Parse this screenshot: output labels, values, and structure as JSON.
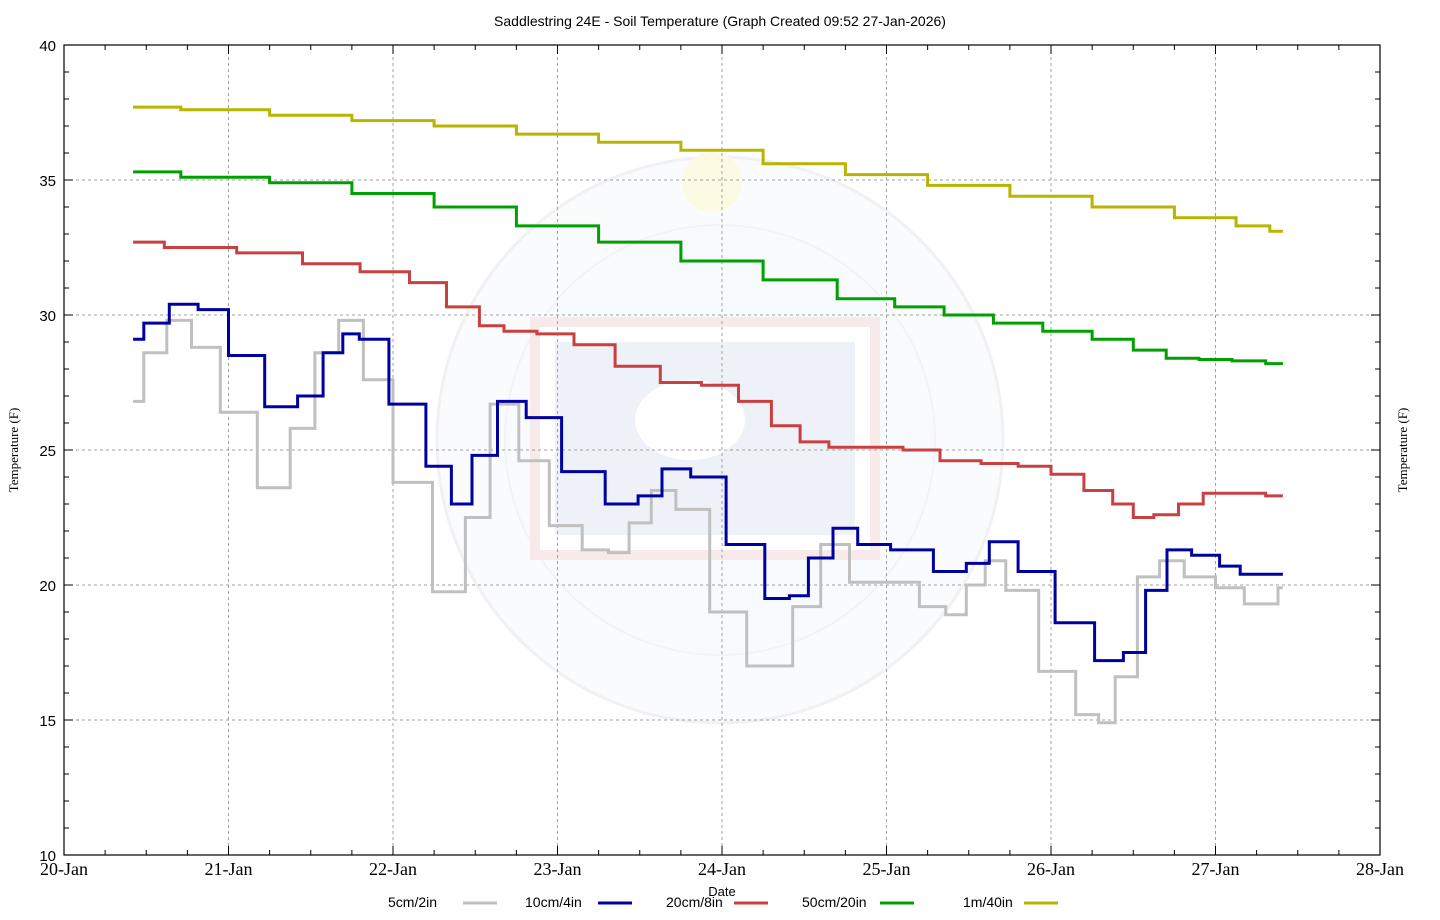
{
  "chart_data": {
    "type": "line",
    "title": "Saddlestring 24E - Soil Temperature (Graph Created 09:52 27-Jan-2026)",
    "xlabel": "Date",
    "ylabel": "Temperature (F)",
    "ylabel_right": "Temperature (F)",
    "xlim_days": [
      0,
      8
    ],
    "ylim": [
      10,
      40
    ],
    "x_tick_labels": [
      "20-Jan",
      "21-Jan",
      "22-Jan",
      "23-Jan",
      "24-Jan",
      "25-Jan",
      "26-Jan",
      "27-Jan",
      "28-Jan"
    ],
    "y_tick_labels": [
      "10",
      "15",
      "20",
      "25",
      "30",
      "35",
      "40"
    ],
    "y_ticks": [
      10,
      15,
      20,
      25,
      30,
      35,
      40
    ],
    "y_minor_step": 1,
    "x_minor_step_days": 0.25,
    "grid": true,
    "legend_position": "bottom",
    "x_unit_note": "x values are days after 20-Jan 00:00",
    "series": [
      {
        "name": "5cm/2in",
        "color": "#c0c0c0",
        "x": [
          0.42,
          0.55,
          0.7,
          0.85,
          1.05,
          1.3,
          1.45,
          1.6,
          1.74,
          1.9,
          2.1,
          2.38,
          2.5,
          2.68,
          2.85,
          3.05,
          3.25,
          3.37,
          3.5,
          3.64,
          3.8,
          4.05,
          4.25,
          4.36,
          4.5,
          4.7,
          4.85,
          5.1,
          5.3,
          5.42,
          5.55,
          5.65,
          5.8,
          6.05,
          6.25,
          6.33,
          6.45,
          6.6,
          6.72,
          6.9,
          7.1,
          7.25,
          7.35,
          7.41
        ],
        "y": [
          26.8,
          28.6,
          29.8,
          28.8,
          26.4,
          23.6,
          25.8,
          28.6,
          29.8,
          27.6,
          23.8,
          19.75,
          22.5,
          26.7,
          24.6,
          22.2,
          21.3,
          21.2,
          22.3,
          23.5,
          22.8,
          19.0,
          17.0,
          17.0,
          19.2,
          21.5,
          20.1,
          20.1,
          19.2,
          18.9,
          20.0,
          20.9,
          19.8,
          16.8,
          15.2,
          14.9,
          16.6,
          20.3,
          20.9,
          20.3,
          19.9,
          19.3,
          19.3,
          19.9
        ]
      },
      {
        "name": "10cm/4in",
        "color": "#0000a0",
        "x": [
          0.42,
          0.55,
          0.73,
          0.9,
          1.1,
          1.34,
          1.5,
          1.65,
          1.74,
          1.85,
          2.1,
          2.3,
          2.41,
          2.55,
          2.72,
          2.9,
          3.15,
          3.43,
          3.55,
          3.72,
          3.9,
          4.15,
          4.37,
          4.45,
          4.6,
          4.75,
          4.9,
          5.15,
          5.42,
          5.55,
          5.7,
          5.9,
          6.15,
          6.38,
          6.5,
          6.65,
          6.76,
          6.95,
          7.1,
          7.2,
          7.41
        ],
        "y": [
          29.1,
          29.7,
          30.4,
          30.2,
          28.5,
          26.6,
          27.0,
          28.6,
          29.3,
          29.1,
          26.7,
          24.4,
          23.0,
          24.8,
          26.8,
          26.2,
          24.2,
          23.0,
          23.3,
          24.3,
          24.0,
          21.5,
          19.5,
          19.6,
          21.0,
          22.1,
          21.5,
          21.3,
          20.5,
          20.8,
          21.6,
          20.5,
          18.6,
          17.2,
          17.5,
          19.8,
          21.3,
          21.1,
          20.7,
          20.4,
          20.4
        ]
      },
      {
        "name": "20cm/8in",
        "color": "#c84040",
        "x": [
          0.42,
          0.8,
          1.3,
          1.6,
          2.0,
          2.2,
          2.45,
          2.6,
          2.75,
          3.0,
          3.2,
          3.5,
          3.75,
          4.0,
          4.2,
          4.4,
          4.55,
          4.75,
          5.0,
          5.2,
          5.45,
          5.7,
          5.9,
          6.1,
          6.3,
          6.45,
          6.55,
          6.7,
          6.85,
          7.0,
          7.2,
          7.41
        ],
        "y": [
          32.7,
          32.5,
          32.3,
          31.9,
          31.6,
          31.2,
          30.3,
          29.6,
          29.4,
          29.3,
          28.9,
          28.1,
          27.5,
          27.4,
          26.8,
          25.9,
          25.3,
          25.1,
          25.1,
          25.0,
          24.6,
          24.5,
          24.4,
          24.1,
          23.5,
          23.0,
          22.5,
          22.6,
          23.0,
          23.4,
          23.4,
          23.3
        ]
      },
      {
        "name": "50cm/20in",
        "color": "#00a000",
        "x": [
          0.42,
          1.0,
          1.5,
          2.0,
          2.5,
          3.0,
          3.5,
          4.0,
          4.5,
          4.9,
          5.2,
          5.5,
          5.8,
          6.1,
          6.4,
          6.6,
          6.8,
          7.0,
          7.2,
          7.41
        ],
        "y": [
          35.3,
          35.1,
          34.9,
          34.5,
          34.0,
          33.3,
          32.7,
          32.0,
          31.3,
          30.6,
          30.3,
          30.0,
          29.7,
          29.4,
          29.1,
          28.7,
          28.4,
          28.35,
          28.3,
          28.2
        ]
      },
      {
        "name": "1m/40in",
        "color": "#b8b400",
        "x": [
          0.42,
          1.0,
          1.5,
          2.0,
          2.5,
          3.0,
          3.5,
          4.0,
          4.5,
          5.0,
          5.5,
          6.0,
          6.5,
          7.0,
          7.25,
          7.41
        ],
        "y": [
          37.7,
          37.6,
          37.4,
          37.2,
          37.0,
          36.7,
          36.4,
          36.1,
          35.6,
          35.2,
          34.8,
          34.4,
          34.0,
          33.6,
          33.3,
          33.1
        ]
      }
    ]
  }
}
